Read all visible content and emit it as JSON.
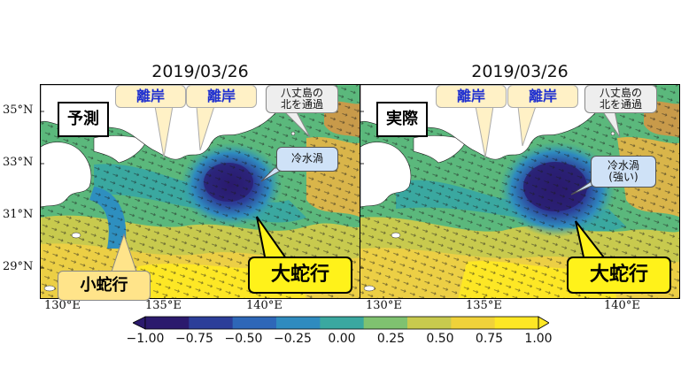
{
  "panels": [
    {
      "date": "2019/03/26",
      "label": "予測",
      "callouts": {
        "offshore_1": "離岸",
        "offshore_2": "離岸",
        "hachijo": "八丈島の\n北を通過",
        "cold_eddy": "冷水渦",
        "large_meander": "大蛇行",
        "small_meander": "小蛇行"
      }
    },
    {
      "date": "2019/03/26",
      "label": "実際",
      "callouts": {
        "offshore_1": "離岸",
        "offshore_2": "離岸",
        "hachijo": "八丈島の\n北を通過",
        "cold_eddy": "冷水渦\n(強い)",
        "large_meander": "大蛇行"
      }
    }
  ],
  "axes": {
    "lat_ticks": [
      "35°N",
      "33°N",
      "31°N",
      "29°N"
    ],
    "lon_ticks": [
      "130°E",
      "135°E",
      "140°E"
    ]
  },
  "colorbar": {
    "ticks": [
      "−1.00",
      "−0.75",
      "−0.50",
      "−0.25",
      "0.00",
      "0.25",
      "0.50",
      "0.75",
      "1.00"
    ],
    "colors": [
      "#2b1a6d",
      "#2c3e99",
      "#2e67b8",
      "#2f8bbf",
      "#3aa8a0",
      "#7fc270",
      "#c8ca4e",
      "#f0d23a",
      "#fde725"
    ]
  }
}
